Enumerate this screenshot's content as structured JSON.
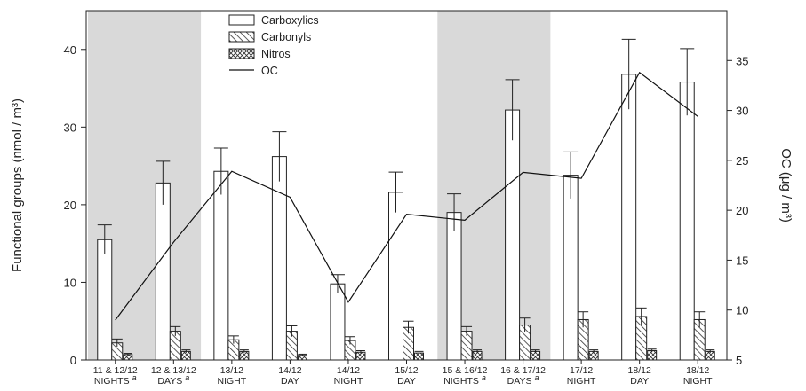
{
  "chart_data": {
    "type": "bar",
    "categories": [
      [
        "11 & 12/12",
        "NIGHTS"
      ],
      [
        "12 & 13/12",
        "DAYS"
      ],
      [
        "13/12",
        "NIGHT"
      ],
      [
        "14/12",
        "DAY"
      ],
      [
        "14/12",
        "NIGHT"
      ],
      [
        "15/12",
        "DAY"
      ],
      [
        "15 & 16/12",
        "NIGHTS"
      ],
      [
        "16 & 17/12",
        "DAYS"
      ],
      [
        "17/12",
        "NIGHT"
      ],
      [
        "18/12",
        "DAY"
      ],
      [
        "18/12",
        "NIGHT"
      ]
    ],
    "category_superscripts": [
      "a",
      "a",
      "",
      "",
      "",
      "",
      "a",
      "a",
      "",
      "",
      ""
    ],
    "shaded_category_groups": [
      [
        0,
        1
      ],
      [
        6,
        7
      ]
    ],
    "series": [
      {
        "name": "Carboxylics",
        "pattern": "open",
        "values": [
          15.5,
          22.8,
          24.3,
          26.2,
          9.8,
          21.6,
          19.0,
          32.2,
          23.8,
          36.8,
          35.8
        ],
        "errors": [
          1.9,
          2.8,
          3.0,
          3.2,
          1.2,
          2.6,
          2.4,
          3.9,
          3.0,
          4.5,
          4.3
        ]
      },
      {
        "name": "Carbonyls",
        "pattern": "hatched",
        "values": [
          2.2,
          3.7,
          2.6,
          3.7,
          2.5,
          4.2,
          3.7,
          4.5,
          5.2,
          5.6,
          5.2
        ],
        "errors": [
          0.5,
          0.6,
          0.5,
          0.7,
          0.5,
          0.8,
          0.6,
          0.9,
          1.0,
          1.1,
          1.0
        ]
      },
      {
        "name": "Nitros",
        "pattern": "crosshatch",
        "values": [
          0.7,
          1.1,
          1.1,
          0.6,
          1.0,
          0.9,
          1.1,
          1.1,
          1.1,
          1.2,
          1.1
        ],
        "errors": [
          0.15,
          0.2,
          0.2,
          0.15,
          0.2,
          0.2,
          0.2,
          0.2,
          0.2,
          0.2,
          0.2
        ]
      }
    ],
    "line_series": {
      "name": "OC",
      "axis": "right",
      "values": [
        9.0,
        16.8,
        23.9,
        21.3,
        10.8,
        19.6,
        19.0,
        23.8,
        23.2,
        33.8,
        29.4
      ]
    },
    "ylabel": "Functional groups (nmol / m³)",
    "y2label": "OC (μg / m³)",
    "ylim": [
      0,
      45
    ],
    "y2lim": [
      5,
      40
    ],
    "yticks": [
      0,
      10,
      20,
      30,
      40
    ],
    "y2ticks": [
      5,
      10,
      15,
      20,
      25,
      30,
      35
    ],
    "legend_position": "top-center"
  }
}
